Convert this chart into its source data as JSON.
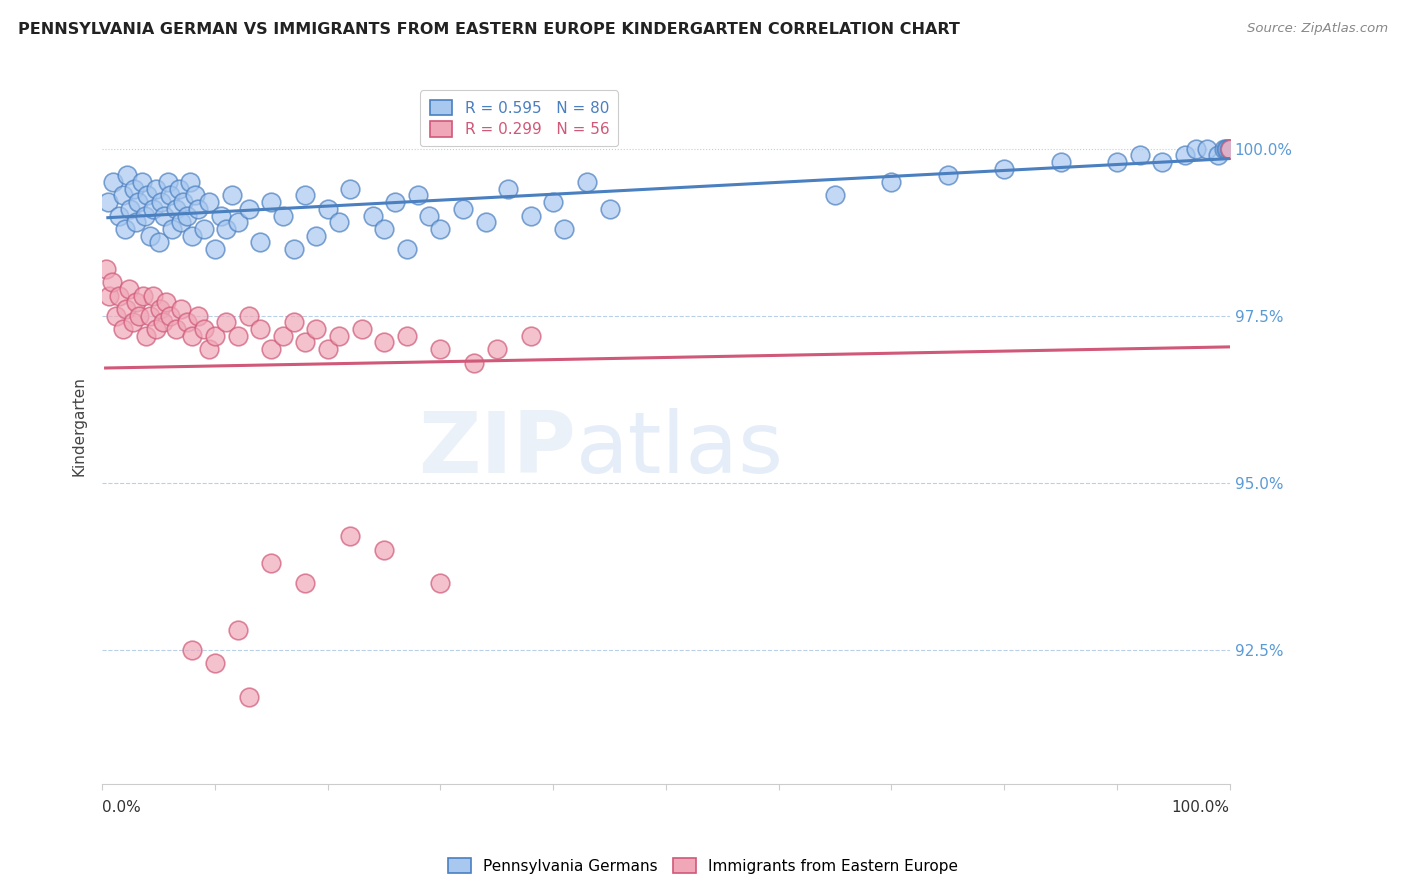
{
  "title": "PENNSYLVANIA GERMAN VS IMMIGRANTS FROM EASTERN EUROPE KINDERGARTEN CORRELATION CHART",
  "source": "Source: ZipAtlas.com",
  "ylabel": "Kindergarten",
  "xlim": [
    0.0,
    100.0
  ],
  "ylim": [
    90.5,
    101.2
  ],
  "blue_color": "#a8c8f0",
  "pink_color": "#f0a8b8",
  "blue_line_color": "#4a7fc0",
  "pink_line_color": "#d05878",
  "blue_R": 0.595,
  "blue_N": 80,
  "pink_R": 0.299,
  "pink_N": 56,
  "legend_label_blue": "Pennsylvania Germans",
  "legend_label_pink": "Immigrants from Eastern Europe",
  "ytick_vals": [
    92.5,
    95.0,
    97.5,
    100.0
  ],
  "ytick_labels": [
    "92.5%",
    "95.0%",
    "97.5%",
    "100.0%"
  ],
  "blue_scatter_x": [
    0.5,
    1.0,
    1.5,
    1.8,
    2.0,
    2.2,
    2.5,
    2.8,
    3.0,
    3.2,
    3.5,
    3.8,
    4.0,
    4.2,
    4.5,
    4.8,
    5.0,
    5.2,
    5.5,
    5.8,
    6.0,
    6.2,
    6.5,
    6.8,
    7.0,
    7.2,
    7.5,
    7.8,
    8.0,
    8.2,
    8.5,
    9.0,
    9.5,
    10.0,
    10.5,
    11.0,
    11.5,
    12.0,
    13.0,
    14.0,
    15.0,
    16.0,
    17.0,
    18.0,
    19.0,
    20.0,
    21.0,
    22.0,
    24.0,
    25.0,
    26.0,
    27.0,
    28.0,
    29.0,
    30.0,
    32.0,
    34.0,
    36.0,
    38.0,
    40.0,
    41.0,
    43.0,
    45.0,
    65.0,
    70.0,
    75.0,
    80.0,
    85.0,
    90.0,
    92.0,
    94.0,
    96.0,
    97.0,
    98.0,
    99.0,
    99.5,
    99.7,
    99.8,
    99.9,
    100.0
  ],
  "blue_scatter_y": [
    99.2,
    99.5,
    99.0,
    99.3,
    98.8,
    99.6,
    99.1,
    99.4,
    98.9,
    99.2,
    99.5,
    99.0,
    99.3,
    98.7,
    99.1,
    99.4,
    98.6,
    99.2,
    99.0,
    99.5,
    99.3,
    98.8,
    99.1,
    99.4,
    98.9,
    99.2,
    99.0,
    99.5,
    98.7,
    99.3,
    99.1,
    98.8,
    99.2,
    98.5,
    99.0,
    98.8,
    99.3,
    98.9,
    99.1,
    98.6,
    99.2,
    99.0,
    98.5,
    99.3,
    98.7,
    99.1,
    98.9,
    99.4,
    99.0,
    98.8,
    99.2,
    98.5,
    99.3,
    99.0,
    98.8,
    99.1,
    98.9,
    99.4,
    99.0,
    99.2,
    98.8,
    99.5,
    99.1,
    99.3,
    99.5,
    99.6,
    99.7,
    99.8,
    99.8,
    99.9,
    99.8,
    99.9,
    100.0,
    100.0,
    99.9,
    100.0,
    100.0,
    100.0,
    100.0,
    100.0
  ],
  "pink_scatter_x": [
    0.3,
    0.6,
    0.9,
    1.2,
    1.5,
    1.8,
    2.1,
    2.4,
    2.7,
    3.0,
    3.3,
    3.6,
    3.9,
    4.2,
    4.5,
    4.8,
    5.1,
    5.4,
    5.7,
    6.0,
    6.5,
    7.0,
    7.5,
    8.0,
    8.5,
    9.0,
    9.5,
    10.0,
    11.0,
    12.0,
    13.0,
    14.0,
    15.0,
    16.0,
    17.0,
    18.0,
    19.0,
    20.0,
    21.0,
    23.0,
    25.0,
    27.0,
    30.0,
    33.0,
    35.0,
    38.0,
    15.0,
    18.0,
    30.0,
    22.0,
    25.0,
    12.0,
    8.0,
    10.0,
    13.0,
    100.0
  ],
  "pink_scatter_y": [
    98.2,
    97.8,
    98.0,
    97.5,
    97.8,
    97.3,
    97.6,
    97.9,
    97.4,
    97.7,
    97.5,
    97.8,
    97.2,
    97.5,
    97.8,
    97.3,
    97.6,
    97.4,
    97.7,
    97.5,
    97.3,
    97.6,
    97.4,
    97.2,
    97.5,
    97.3,
    97.0,
    97.2,
    97.4,
    97.2,
    97.5,
    97.3,
    97.0,
    97.2,
    97.4,
    97.1,
    97.3,
    97.0,
    97.2,
    97.3,
    97.1,
    97.2,
    97.0,
    96.8,
    97.0,
    97.2,
    93.8,
    93.5,
    93.5,
    94.2,
    94.0,
    92.8,
    92.5,
    92.3,
    91.8,
    100.0
  ]
}
